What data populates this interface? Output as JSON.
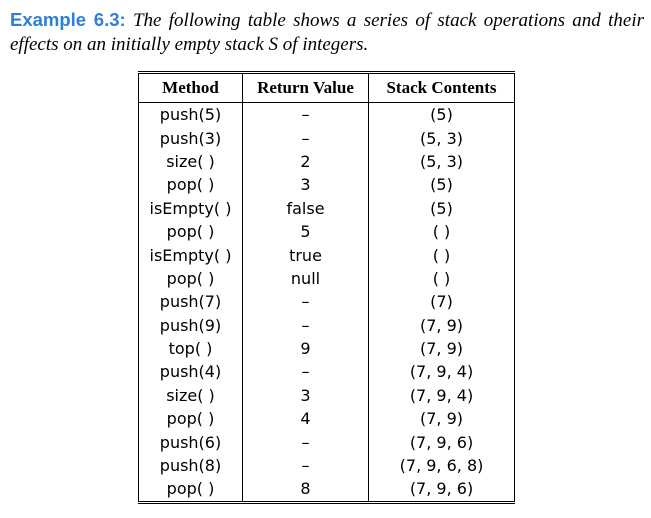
{
  "caption": {
    "label": "Example 6.3:",
    "text": "The following table shows a series of stack operations and their effects on an initially empty stack S of integers."
  },
  "table": {
    "headers": [
      "Method",
      "Return Value",
      "Stack Contents"
    ],
    "rows": [
      [
        "push(5)",
        "–",
        "(5)"
      ],
      [
        "push(3)",
        "–",
        "(5, 3)"
      ],
      [
        "size( )",
        "2",
        "(5, 3)"
      ],
      [
        "pop( )",
        "3",
        "(5)"
      ],
      [
        "isEmpty( )",
        "false",
        "(5)"
      ],
      [
        "pop( )",
        "5",
        "( )"
      ],
      [
        "isEmpty( )",
        "true",
        "( )"
      ],
      [
        "pop( )",
        "null",
        "( )"
      ],
      [
        "push(7)",
        "–",
        "(7)"
      ],
      [
        "push(9)",
        "–",
        "(7, 9)"
      ],
      [
        "top( )",
        "9",
        "(7, 9)"
      ],
      [
        "push(4)",
        "–",
        "(7, 9, 4)"
      ],
      [
        "size( )",
        "3",
        "(7, 9, 4)"
      ],
      [
        "pop( )",
        "4",
        "(7, 9)"
      ],
      [
        "push(6)",
        "–",
        "(7, 9, 6)"
      ],
      [
        "push(8)",
        "–",
        "(7, 9, 6, 8)"
      ],
      [
        "pop( )",
        "8",
        "(7, 9, 6)"
      ]
    ]
  }
}
